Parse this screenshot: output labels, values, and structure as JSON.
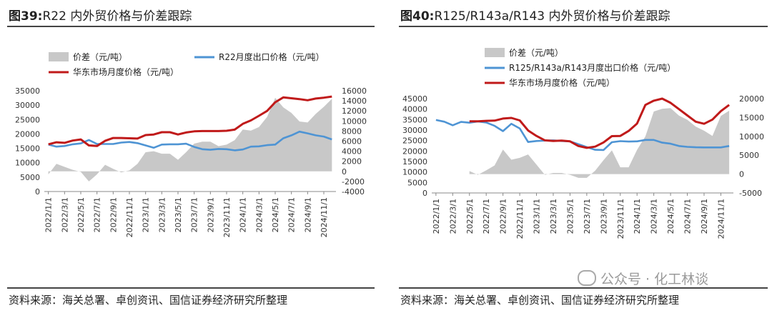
{
  "watermark": "公众号 · 化工林谈",
  "chart_data": [
    {
      "title_num": "图39:",
      "title": "R22 内外贸价格与价差跟踪",
      "source": "资料来源：海关总署、卓创资讯、国信证券经济研究所整理",
      "type": "line",
      "x": [
        "2022/1/1",
        "2022/2/1",
        "2022/3/1",
        "2022/4/1",
        "2022/5/1",
        "2022/6/1",
        "2022/7/1",
        "2022/8/1",
        "2022/9/1",
        "2022/10/1",
        "2022/11/1",
        "2022/12/1",
        "2023/1/1",
        "2023/2/1",
        "2023/3/1",
        "2023/4/1",
        "2023/5/1",
        "2023/6/1",
        "2023/7/1",
        "2023/8/1",
        "2023/9/1",
        "2023/10/1",
        "2023/11/1",
        "2023/12/1",
        "2024/1/1",
        "2024/2/1",
        "2024/3/1",
        "2024/4/1",
        "2024/5/1",
        "2024/6/1",
        "2024/7/1",
        "2024/8/1",
        "2024/9/1",
        "2024/10/1",
        "2024/11/1",
        "2024/12/1"
      ],
      "x_tick_labels": [
        "2022/1/1",
        "2022/3/1",
        "2022/5/1",
        "2022/7/1",
        "2022/9/1",
        "2022/11/1",
        "2023/1/1",
        "2023/3/1",
        "2023/5/1",
        "2023/7/1",
        "2023/9/1",
        "2023/11/1",
        "2024/1/1",
        "2024/3/1",
        "2024/5/1",
        "2024/7/1",
        "2024/9/1",
        "2024/11/1"
      ],
      "y_left": {
        "min": 0,
        "max": 35000,
        "step": 5000
      },
      "y_right": {
        "min": -4000,
        "max": 16000,
        "step": 2000
      },
      "series": [
        {
          "name": "价差（元/吨）",
          "kind": "area",
          "axis": "right",
          "color": "#c8c8c8",
          "values": [
            -600,
            1500,
            900,
            300,
            -100,
            -2000,
            -600,
            1300,
            500,
            -200,
            200,
            1500,
            3800,
            4000,
            3500,
            3500,
            2300,
            3800,
            5500,
            5900,
            5900,
            5000,
            5300,
            6200,
            8300,
            8100,
            8800,
            10800,
            14600,
            12700,
            11600,
            9900,
            9700,
            11400,
            12800,
            14400
          ]
        },
        {
          "name": "R22月度出口价格（元/吨）",
          "kind": "line",
          "axis": "left",
          "color": "#4e94d4",
          "values": [
            16300,
            15600,
            15800,
            16400,
            16700,
            17900,
            16500,
            16500,
            16500,
            17000,
            17200,
            16800,
            16000,
            15200,
            16300,
            16400,
            16400,
            16600,
            15500,
            14700,
            14500,
            14800,
            14700,
            14300,
            14600,
            15600,
            15700,
            16100,
            16300,
            18500,
            19500,
            20800,
            20200,
            19500,
            19100,
            18100
          ]
        },
        {
          "name": "华东市场月度价格（元/吨）",
          "kind": "line",
          "axis": "left",
          "color": "#c01a1a",
          "values": [
            16400,
            17100,
            16900,
            17700,
            18100,
            16000,
            15800,
            17600,
            18600,
            18600,
            18500,
            18400,
            19600,
            19800,
            20600,
            20600,
            19800,
            20500,
            20900,
            21000,
            21000,
            21000,
            21100,
            21500,
            23500,
            24700,
            26300,
            28000,
            31000,
            32700,
            32400,
            32100,
            31700,
            32300,
            32600,
            33000
          ]
        }
      ]
    },
    {
      "title_num": "图40:",
      "title": "R125/R143a/R143 内外贸价格与价差跟踪",
      "source": "资料来源：海关总署、卓创资讯、国信证券经济研究所整理",
      "type": "line",
      "x": [
        "2022/1/1",
        "2022/2/1",
        "2022/3/1",
        "2022/4/1",
        "2022/5/1",
        "2022/6/1",
        "2022/7/1",
        "2022/8/1",
        "2022/9/1",
        "2022/10/1",
        "2022/11/1",
        "2022/12/1",
        "2023/1/1",
        "2023/2/1",
        "2023/3/1",
        "2023/4/1",
        "2023/5/1",
        "2023/6/1",
        "2023/7/1",
        "2023/8/1",
        "2023/9/1",
        "2023/10/1",
        "2023/11/1",
        "2023/12/1",
        "2024/1/1",
        "2024/2/1",
        "2024/3/1",
        "2024/4/1",
        "2024/5/1",
        "2024/6/1",
        "2024/7/1",
        "2024/8/1",
        "2024/9/1",
        "2024/10/1",
        "2024/11/1",
        "2024/12/1"
      ],
      "x_tick_labels": [
        "2022/1/1",
        "2022/3/1",
        "2022/5/1",
        "2022/7/1",
        "2022/9/1",
        "2022/11/1",
        "2023/1/1",
        "2023/3/1",
        "2023/5/1",
        "2023/7/1",
        "2023/9/1",
        "2023/11/1",
        "2024/1/1",
        "2024/3/1",
        "2024/5/1",
        "2024/7/1",
        "2024/9/1",
        "2024/11/1"
      ],
      "y_left": {
        "min": 0,
        "max": 45000,
        "step": 5000
      },
      "y_right": {
        "min": -5000,
        "max": 20000,
        "step": 5000
      },
      "series": [
        {
          "name": "价差（元/吨）",
          "kind": "area",
          "axis": "right",
          "color": "#c8c8c8",
          "values": [
            null,
            null,
            null,
            null,
            800,
            -200,
            1000,
            2300,
            6500,
            3800,
            4300,
            5200,
            2500,
            -200,
            300,
            300,
            -200,
            -1000,
            -1000,
            900,
            3700,
            6300,
            1800,
            1800,
            6400,
            10000,
            16600,
            17300,
            17500,
            15500,
            14400,
            12600,
            11500,
            10100,
            15400,
            16800
          ]
        },
        {
          "name": "R125/R143a/R143月度出口价格（元/吨）",
          "kind": "line",
          "axis": "left",
          "color": "#4e94d4",
          "values": [
            34800,
            34000,
            32300,
            33900,
            33500,
            34100,
            33600,
            32000,
            29500,
            33000,
            30800,
            24300,
            24800,
            25000,
            25100,
            24800,
            24600,
            23300,
            21900,
            20600,
            20500,
            24200,
            24700,
            24500,
            24600,
            25300,
            25300,
            24000,
            23500,
            22400,
            22000,
            21800,
            21700,
            21700,
            21700,
            22400
          ]
        },
        {
          "name": "华东市场月度价格（元/吨）",
          "kind": "line",
          "axis": "left",
          "color": "#c01a1a",
          "values": [
            null,
            null,
            null,
            null,
            34200,
            34200,
            34400,
            34500,
            35500,
            35800,
            34600,
            29800,
            27200,
            25100,
            24800,
            25000,
            24600,
            22400,
            21500,
            22100,
            24100,
            27100,
            27200,
            29600,
            33100,
            42000,
            44000,
            45000,
            43000,
            40000,
            37000,
            34000,
            33000,
            35000,
            39000,
            42000
          ]
        }
      ]
    }
  ]
}
